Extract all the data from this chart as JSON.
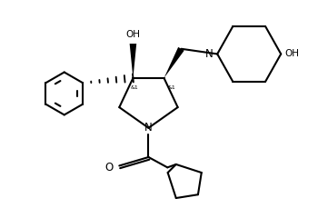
{
  "background_color": "#ffffff",
  "line_color": "#000000",
  "line_width": 1.5,
  "font_size": 7.5,
  "fig_width": 3.61,
  "fig_height": 2.4,
  "dpi": 100,
  "xlim": [
    0,
    9.5
  ],
  "ylim": [
    0,
    6.3
  ]
}
